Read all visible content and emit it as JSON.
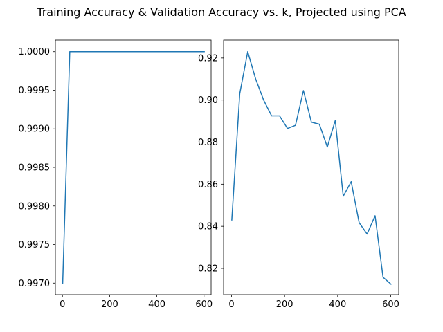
{
  "figure_title": "Training Accuracy & Validation Accuracy vs. k, Projected using PCA",
  "chart_data": [
    {
      "type": "line",
      "title": "",
      "xlabel": "",
      "ylabel": "",
      "xlim": [
        -30,
        630
      ],
      "ylim": [
        0.99685,
        1.00015
      ],
      "xticks": [
        0,
        200,
        400,
        600
      ],
      "xtick_labels": [
        "0",
        "200",
        "400",
        "600"
      ],
      "yticks": [
        0.997,
        0.9975,
        0.998,
        0.9985,
        0.999,
        0.9995,
        1.0
      ],
      "ytick_labels": [
        "0.9970",
        "0.9975",
        "0.9980",
        "0.9985",
        "0.9990",
        "0.9995",
        "1.0000"
      ],
      "grid": false,
      "series": [
        {
          "color": "#1f77b4",
          "x": [
            1,
            31,
            61,
            91,
            121,
            151,
            181,
            211,
            241,
            271,
            301,
            331,
            361,
            391,
            421,
            451,
            481,
            511,
            541,
            571,
            601
          ],
          "y": [
            0.997,
            1.0,
            1.0,
            1.0,
            1.0,
            1.0,
            1.0,
            1.0,
            1.0,
            1.0,
            1.0,
            1.0,
            1.0,
            1.0,
            1.0,
            1.0,
            1.0,
            1.0,
            1.0,
            1.0,
            1.0
          ]
        }
      ]
    },
    {
      "type": "line",
      "title": "",
      "xlabel": "",
      "ylabel": "",
      "xlim": [
        -30,
        630
      ],
      "ylim": [
        0.8075,
        0.9285
      ],
      "xticks": [
        0,
        200,
        400,
        600
      ],
      "xtick_labels": [
        "0",
        "200",
        "400",
        "600"
      ],
      "yticks": [
        0.82,
        0.84,
        0.86,
        0.88,
        0.9,
        0.92
      ],
      "ytick_labels": [
        "0.82",
        "0.84",
        "0.86",
        "0.88",
        "0.90",
        "0.92"
      ],
      "grid": false,
      "series": [
        {
          "color": "#1f77b4",
          "x": [
            1,
            31,
            61,
            91,
            121,
            151,
            181,
            211,
            241,
            271,
            301,
            331,
            361,
            391,
            421,
            451,
            481,
            511,
            541,
            571,
            601
          ],
          "y": [
            0.843,
            0.903,
            0.923,
            0.91,
            0.9,
            0.8925,
            0.8925,
            0.8865,
            0.888,
            0.9045,
            0.8895,
            0.8885,
            0.8777,
            0.8903,
            0.8543,
            0.8612,
            0.8417,
            0.8363,
            0.845,
            0.8158,
            0.8125
          ]
        }
      ]
    }
  ]
}
